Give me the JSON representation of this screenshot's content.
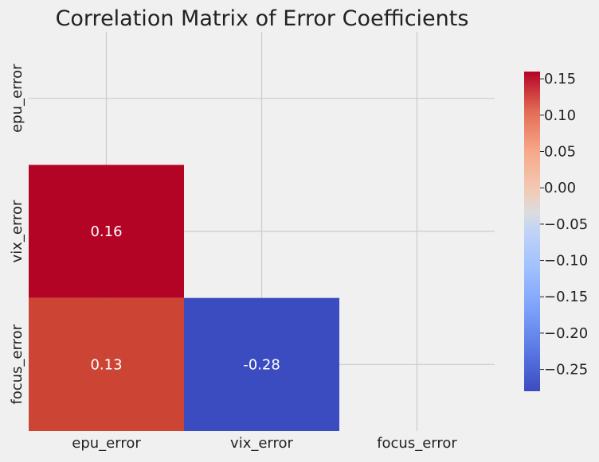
{
  "chart_data": {
    "type": "heatmap",
    "title": "Correlation Matrix of Error Coefficients",
    "xlabel": "",
    "ylabel": "",
    "variables": [
      "epu_error",
      "vix_error",
      "focus_error"
    ],
    "mask": "upper triangle incl. diagonal",
    "cells": [
      {
        "row": "vix_error",
        "col": "epu_error",
        "value": 0.16,
        "label": "0.16",
        "color": "#b40426"
      },
      {
        "row": "focus_error",
        "col": "epu_error",
        "value": 0.13,
        "label": "0.13",
        "color": "#cc4434"
      },
      {
        "row": "focus_error",
        "col": "vix_error",
        "value": -0.28,
        "label": "-0.28",
        "color": "#3b4cc0"
      }
    ],
    "colorbar": {
      "colormap": "coolwarm",
      "range": [
        -0.28,
        0.16
      ],
      "ticks": [
        0.15,
        0.1,
        0.05,
        0.0,
        -0.05,
        -0.1,
        -0.15,
        -0.2,
        -0.25
      ],
      "tick_labels": [
        "0.15",
        "0.10",
        "0.05",
        "0.00",
        "−0.05",
        "−0.10",
        "−0.15",
        "−0.20",
        "−0.25"
      ]
    },
    "grid": true
  },
  "colors": {
    "background": "#f0f0f0",
    "grid": "#cbcbcb",
    "cell_text": "#ffffff",
    "text": "#222222"
  }
}
